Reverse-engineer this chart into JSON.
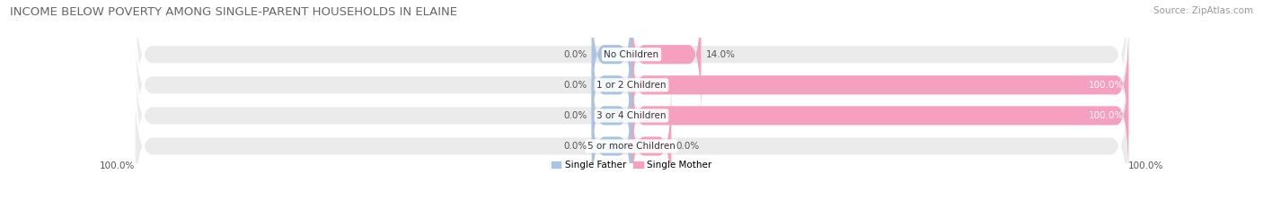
{
  "title": "INCOME BELOW POVERTY AMONG SINGLE-PARENT HOUSEHOLDS IN ELAINE",
  "source": "Source: ZipAtlas.com",
  "categories": [
    "No Children",
    "1 or 2 Children",
    "3 or 4 Children",
    "5 or more Children"
  ],
  "single_father": [
    0.0,
    0.0,
    0.0,
    0.0
  ],
  "single_mother": [
    14.0,
    100.0,
    100.0,
    0.0
  ],
  "father_color": "#a8c4e0",
  "mother_color": "#f5a0be",
  "bar_bg_color": "#ebebeb",
  "background_color": "#ffffff",
  "title_fontsize": 9.5,
  "source_fontsize": 7.5,
  "label_fontsize": 7.5,
  "category_fontsize": 7.5,
  "bar_height": 0.62,
  "legend_father": "Single Father",
  "legend_mother": "Single Mother",
  "axis_label_left": "100.0%",
  "axis_label_right": "100.0%",
  "max_val": 100,
  "min_father_display": 8,
  "min_mother_display": 8
}
